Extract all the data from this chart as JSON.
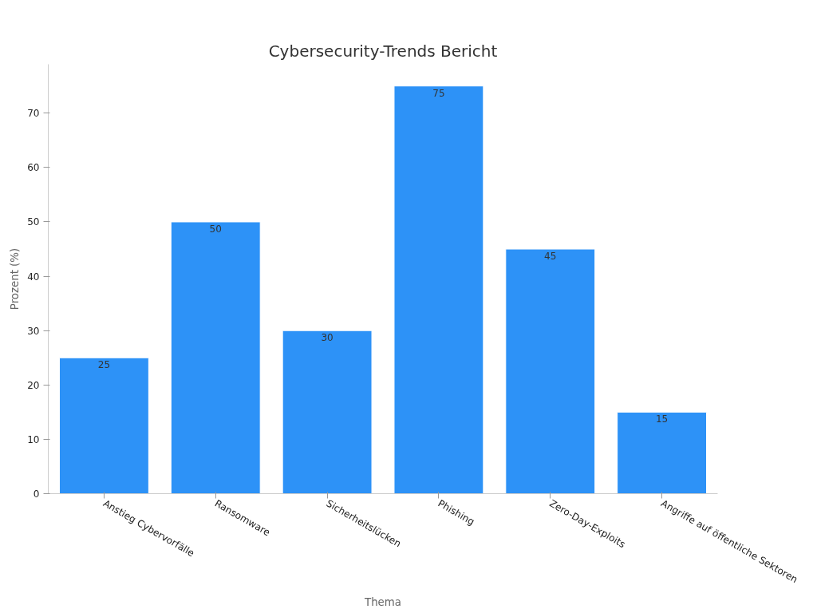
{
  "chart_data": {
    "type": "bar",
    "title": "Cybersecurity-Trends Bericht",
    "xlabel": "Thema",
    "ylabel": "Prozent (%)",
    "categories": [
      "Anstieg Cybervorfälle",
      "Ransomware",
      "Sicherheitslücken",
      "Phishing",
      "Zero-Day-Exploits",
      "Angriffe auf öffentliche Sektoren"
    ],
    "values": [
      25,
      50,
      30,
      75,
      45,
      15
    ],
    "color": "#2d92f7",
    "ylim": [
      0,
      79
    ],
    "yticks": [
      0,
      10,
      20,
      30,
      40,
      50,
      60,
      70
    ],
    "grid": false,
    "data_labels": true
  }
}
